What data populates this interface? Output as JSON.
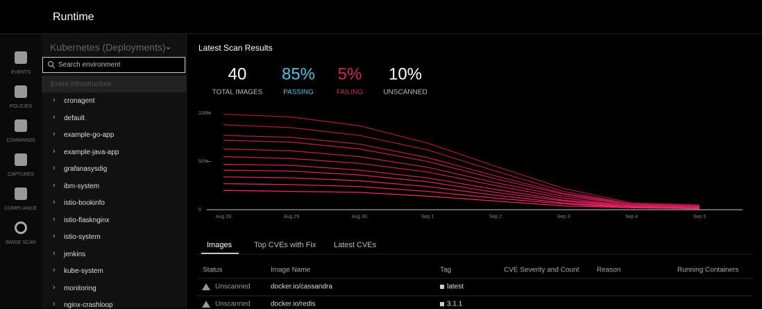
{
  "header": {
    "title": "Runtime"
  },
  "nav": [
    "EVENTS",
    "POLICIES",
    "COMMANDS",
    "CAPTURES",
    "COMPLIANCE",
    "IMAGE SCAN"
  ],
  "sidebar": {
    "scope": "Kubernetes (Deployments)",
    "search_placeholder": "Search environment",
    "all": "Entire infrastructure",
    "items": [
      "cronagent",
      "default",
      "example-go-app",
      "example-java-app",
      "grafanasysdig",
      "ibm-system",
      "istio-bookinfo",
      "istio-flasknginx",
      "istio-system",
      "jenkins",
      "kube-system",
      "monitoring",
      "nginx-crashloop"
    ]
  },
  "panel_title": "Latest Scan Results",
  "stats": [
    {
      "value": "40",
      "label": "TOTAL IMAGES",
      "color": "#ffffff"
    },
    {
      "value": "85%",
      "label": "PASSING",
      "color": "#5bc0de"
    },
    {
      "value": "5%",
      "label": "FAILING",
      "color": "#c9304f"
    },
    {
      "value": "10%",
      "label": "UNSCANNED",
      "color": "#ffffff"
    }
  ],
  "chart_data": {
    "type": "line",
    "categories": [
      "Aug 28",
      "Aug 29",
      "Aug 30",
      "Sep 1",
      "Sep 2",
      "Sep 3",
      "Sep 4",
      "Sep 5"
    ],
    "ylim": [
      0,
      100
    ],
    "yticks": [
      0,
      {
        "value": 50,
        "label": "50%"
      },
      {
        "value": 100,
        "label": "100%"
      }
    ],
    "series": [
      {
        "color": "#9e1840",
        "values": [
          99,
          96,
          87,
          69,
          45,
          22,
          7,
          5
        ]
      },
      {
        "color": "#a81a45",
        "values": [
          88,
          85,
          77,
          62,
          40,
          19,
          6,
          4
        ]
      },
      {
        "color": "#b21b4a",
        "values": [
          77,
          75,
          68,
          54,
          35,
          17,
          6,
          4
        ]
      },
      {
        "color": "#b81c4e",
        "values": [
          72,
          70,
          63,
          50,
          32,
          16,
          5,
          4
        ]
      },
      {
        "color": "#c01d52",
        "values": [
          63,
          61,
          55,
          44,
          28,
          14,
          5,
          3
        ]
      },
      {
        "color": "#c81e56",
        "values": [
          55,
          53,
          48,
          39,
          25,
          12,
          4,
          3
        ]
      },
      {
        "color": "#d0205a",
        "values": [
          47,
          46,
          41,
          33,
          21,
          10,
          4,
          3
        ]
      },
      {
        "color": "#d8225e",
        "values": [
          41,
          40,
          36,
          29,
          18,
          9,
          3,
          2
        ]
      },
      {
        "color": "#df2462",
        "values": [
          34,
          33,
          30,
          24,
          15,
          7,
          3,
          2
        ]
      },
      {
        "color": "#e62666",
        "values": [
          27,
          26,
          24,
          19,
          12,
          6,
          2,
          2
        ]
      },
      {
        "color": "#ec286a",
        "values": [
          20,
          19,
          18,
          14,
          9,
          4,
          2,
          1
        ]
      }
    ]
  },
  "tabs": [
    "Images",
    "Top CVEs with Fix",
    "Latest CVEs"
  ],
  "table": {
    "columns": [
      "Status",
      "Image Name",
      "Tag",
      "CVE Severity and Count",
      "Reason",
      "Running Containers"
    ],
    "rows": [
      [
        "Unscanned",
        "docker.io/cassandra",
        "latest"
      ],
      [
        "Unscanned",
        "docker.io/redis",
        "3.1.1"
      ]
    ]
  }
}
